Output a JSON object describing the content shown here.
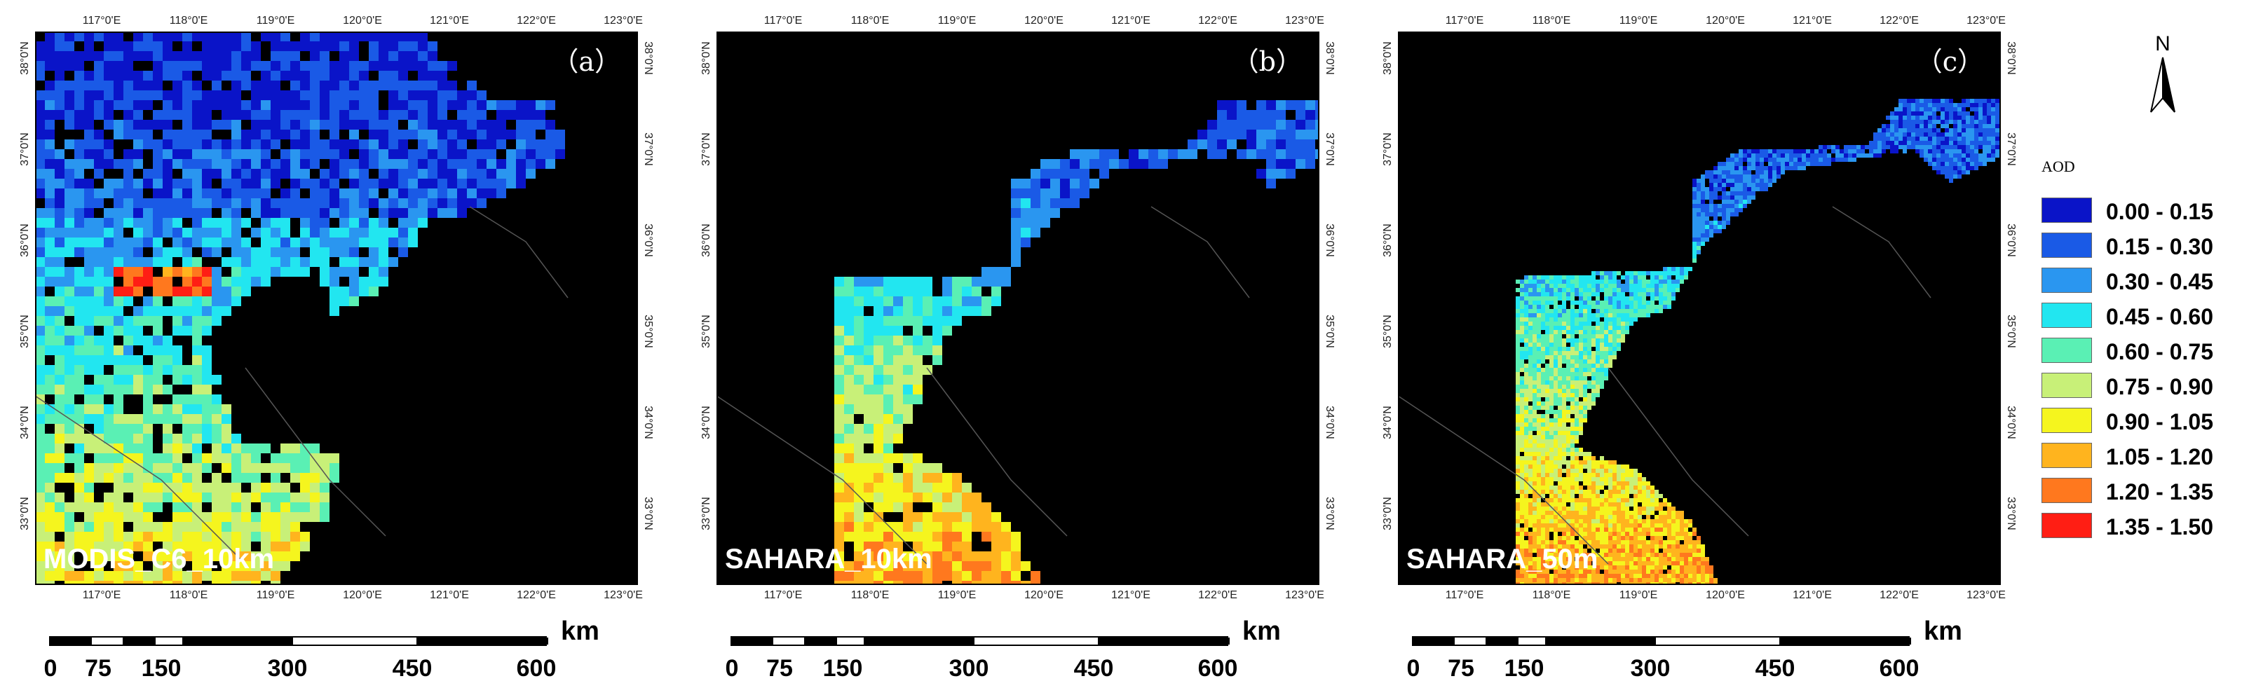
{
  "panels": [
    {
      "id": "a",
      "panel_label": "（a）",
      "dataset": "MODIS_C6_10km"
    },
    {
      "id": "b",
      "panel_label": "（b）",
      "dataset": "SAHARA_10km"
    },
    {
      "id": "c",
      "panel_label": "（c）",
      "dataset": "SAHARA_50m"
    }
  ],
  "lon_ticks": [
    "117°0'E",
    "118°0'E",
    "119°0'E",
    "120°0'E",
    "121°0'E",
    "122°0'E",
    "123°0'E"
  ],
  "lat_ticks": [
    "38°0'N",
    "37°0'N",
    "36°0'N",
    "35°0'N",
    "34°0'N",
    "33°0'N"
  ],
  "scale_bar": {
    "unit": "km",
    "labels": [
      "0",
      "75",
      "150",
      "300",
      "450",
      "600"
    ]
  },
  "north_arrow": {
    "label": "N",
    "icon": "north-arrow-icon"
  },
  "legend": {
    "title": "AOD",
    "classes": [
      {
        "label": "0.00 - 0.15",
        "color": "#0a14c8"
      },
      {
        "label": "0.15 - 0.30",
        "color": "#1a5ae6"
      },
      {
        "label": "0.30 - 0.45",
        "color": "#2a96f0"
      },
      {
        "label": "0.45 - 0.60",
        "color": "#22e6f0"
      },
      {
        "label": "0.60 - 0.75",
        "color": "#5af0b4"
      },
      {
        "label": "0.75 - 0.90",
        "color": "#c8f078"
      },
      {
        "label": "0.90 - 1.05",
        "color": "#f5f51e"
      },
      {
        "label": "1.05 - 1.20",
        "color": "#ffb41e"
      },
      {
        "label": "1.20 - 1.35",
        "color": "#ff781e"
      },
      {
        "label": "1.35 - 1.50",
        "color": "#ff1e14"
      }
    ]
  },
  "colors": {
    "background": "#000000",
    "frame": "#000000"
  }
}
